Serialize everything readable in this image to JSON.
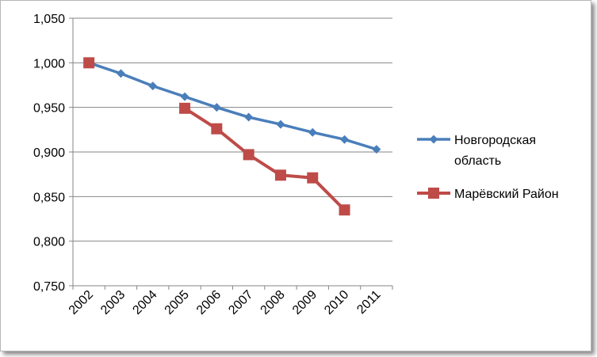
{
  "chart_data": {
    "type": "line",
    "title": "",
    "xlabel": "",
    "ylabel": "",
    "categories": [
      "2002",
      "2003",
      "2004",
      "2005",
      "2006",
      "2007",
      "2008",
      "2009",
      "2010",
      "2011"
    ],
    "ylim": [
      0.75,
      1.05
    ],
    "yticks": [
      0.75,
      0.8,
      0.85,
      0.9,
      0.95,
      1.0,
      1.05
    ],
    "ytick_labels": [
      "0,750",
      "0,800",
      "0,850",
      "0,900",
      "0,950",
      "1,000",
      "1,050"
    ],
    "grid": true,
    "legend_position": "right",
    "series": [
      {
        "name": "Новгородская область",
        "legend_lines": [
          "Новгородская",
          "область"
        ],
        "color": "#4a7ebb",
        "marker": "diamond",
        "values": [
          1.0,
          0.988,
          0.974,
          0.962,
          0.95,
          0.939,
          0.931,
          0.922,
          0.914,
          0.903
        ]
      },
      {
        "name": "Марёвский Район",
        "legend_lines": [
          "Марёвский Район"
        ],
        "color": "#be4b48",
        "marker": "square",
        "values": [
          1.0,
          null,
          null,
          0.949,
          0.926,
          0.897,
          0.874,
          0.871,
          0.835,
          null
        ]
      }
    ]
  }
}
